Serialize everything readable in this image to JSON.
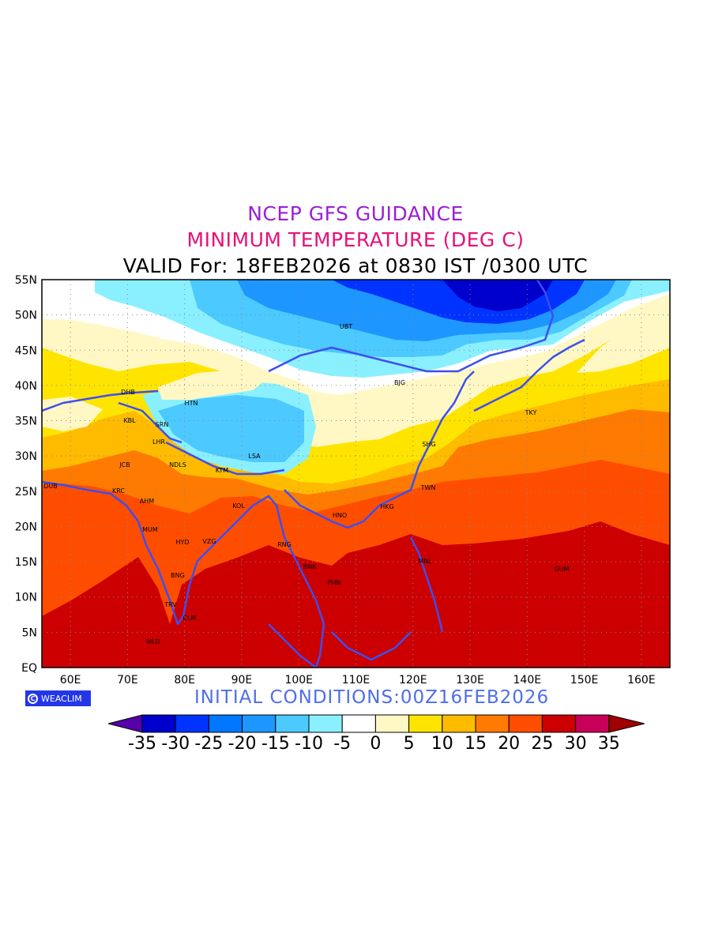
{
  "titles": {
    "line1": "NCEP GFS GUIDANCE",
    "line2": "MINIMUM TEMPERATURE (DEG C)",
    "line3": "VALID For: 18FEB2026 at 0830 IST /0300 UTC",
    "line1_color": "#9a1fd6",
    "line2_color": "#e8107a",
    "line3_color": "#000000"
  },
  "initial_conditions": "INITIAL CONDITIONS:00Z16FEB2026",
  "initial_color": "#4f6ee8",
  "logo": {
    "text": "WEACLIM",
    "icon": "copyright-circle-icon",
    "bg": "#2436e8"
  },
  "axes": {
    "lat_labels": [
      "55N",
      "50N",
      "45N",
      "40N",
      "35N",
      "30N",
      "25N",
      "20N",
      "15N",
      "10N",
      "5N",
      "EQ"
    ],
    "lon_labels": [
      "60E",
      "70E",
      "80E",
      "90E",
      "100E",
      "110E",
      "120E",
      "130E",
      "140E",
      "150E",
      "160E"
    ]
  },
  "cities": [
    {
      "code": "UBT"
    },
    {
      "code": "BJG"
    },
    {
      "code": "DHB"
    },
    {
      "code": "HTN"
    },
    {
      "code": "TKY"
    },
    {
      "code": "KBL"
    },
    {
      "code": "SRN"
    },
    {
      "code": "LHR"
    },
    {
      "code": "SHG"
    },
    {
      "code": "LSA"
    },
    {
      "code": "JCB"
    },
    {
      "code": "NDLS"
    },
    {
      "code": "KTM"
    },
    {
      "code": "TWN"
    },
    {
      "code": "DUB"
    },
    {
      "code": "KRC"
    },
    {
      "code": "AHM"
    },
    {
      "code": "KOL"
    },
    {
      "code": "HKG"
    },
    {
      "code": "HNO"
    },
    {
      "code": "MUM"
    },
    {
      "code": "HYD"
    },
    {
      "code": "VZG"
    },
    {
      "code": "RNG"
    },
    {
      "code": "MNL"
    },
    {
      "code": "BNK"
    },
    {
      "code": "GUM"
    },
    {
      "code": "BNG"
    },
    {
      "code": "PHN"
    },
    {
      "code": "TRV"
    },
    {
      "code": "CLM"
    },
    {
      "code": "MLD"
    }
  ],
  "colorbar": {
    "labels": [
      "-35",
      "-30",
      "-25",
      "-20",
      "-15",
      "-10",
      "-5",
      "0",
      "5",
      "10",
      "15",
      "20",
      "25",
      "30",
      "35"
    ],
    "colors": [
      "#0000cc",
      "#0033ff",
      "#0077ff",
      "#1e96ff",
      "#4cc9ff",
      "#8af0ff",
      "#ffffff",
      "#fff8c4",
      "#ffe400",
      "#ffbb00",
      "#ff7a00",
      "#ff4d00",
      "#cc0000",
      "#c8005a"
    ],
    "under_color": "#5500aa",
    "over_color": "#a00000"
  },
  "map_colors": {
    "coast": "#3d4ef0",
    "deep_cold": "#0033ff",
    "cold": "#1e96ff",
    "cool": "#4cc9ff",
    "cyan": "#8af0ff",
    "white": "#ffffff",
    "pale": "#fff8c4",
    "yellow": "#ffe400",
    "gold": "#ffbb00",
    "orange": "#ff7a00",
    "redorange": "#ff4d00",
    "red": "#cc0000"
  }
}
